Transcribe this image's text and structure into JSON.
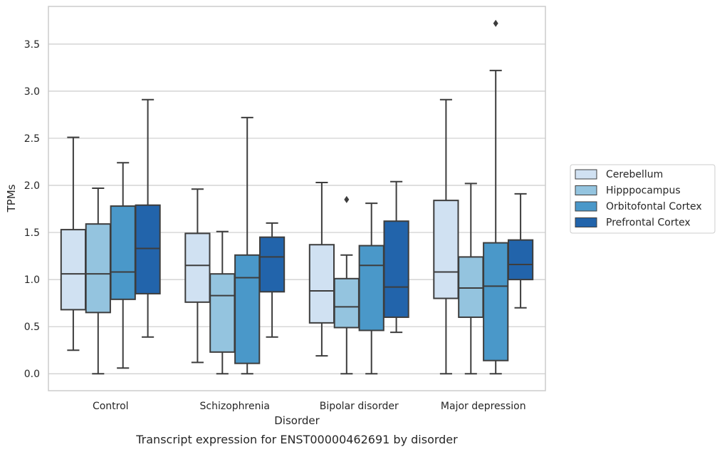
{
  "caption": "Transcript expression for ENST00000462691 by disorder",
  "chart_data": {
    "type": "box",
    "xlabel": "Disorder",
    "ylabel": "TPMs",
    "ylim": [
      -0.18,
      3.9
    ],
    "yticks": [
      "0.0",
      "0.5",
      "1.0",
      "1.5",
      "2.0",
      "2.5",
      "3.0",
      "3.5"
    ],
    "ytick_values": [
      0.0,
      0.5,
      1.0,
      1.5,
      2.0,
      2.5,
      3.0,
      3.5
    ],
    "grid": true,
    "legend_position": "right",
    "categories": [
      "Control",
      "Schizophrenia",
      "Bipolar disorder",
      "Major depression"
    ],
    "series": [
      {
        "name": "Cerebellum",
        "color": "#d0e1f2",
        "boxes": [
          {
            "whislo": 0.25,
            "q1": 0.68,
            "med": 1.06,
            "q3": 1.53,
            "whishi": 2.51,
            "fliers": []
          },
          {
            "whislo": 0.12,
            "q1": 0.76,
            "med": 1.15,
            "q3": 1.49,
            "whishi": 1.96,
            "fliers": []
          },
          {
            "whislo": 0.19,
            "q1": 0.54,
            "med": 0.88,
            "q3": 1.37,
            "whishi": 2.03,
            "fliers": []
          },
          {
            "whislo": 0.0,
            "q1": 0.8,
            "med": 1.08,
            "q3": 1.84,
            "whishi": 2.91,
            "fliers": []
          }
        ]
      },
      {
        "name": "Hipppocampus",
        "color": "#94c4df",
        "boxes": [
          {
            "whislo": 0.0,
            "q1": 0.65,
            "med": 1.06,
            "q3": 1.59,
            "whishi": 1.97,
            "fliers": []
          },
          {
            "whislo": 0.0,
            "q1": 0.23,
            "med": 0.83,
            "q3": 1.06,
            "whishi": 1.51,
            "fliers": []
          },
          {
            "whislo": 0.0,
            "q1": 0.49,
            "med": 0.71,
            "q3": 1.01,
            "whishi": 1.26,
            "fliers": [
              1.85
            ]
          },
          {
            "whislo": 0.0,
            "q1": 0.6,
            "med": 0.91,
            "q3": 1.24,
            "whishi": 2.02,
            "fliers": []
          }
        ]
      },
      {
        "name": "Orbitofontal Cortex",
        "color": "#4a98c9",
        "boxes": [
          {
            "whislo": 0.06,
            "q1": 0.79,
            "med": 1.08,
            "q3": 1.78,
            "whishi": 2.24,
            "fliers": []
          },
          {
            "whislo": 0.0,
            "q1": 0.11,
            "med": 1.02,
            "q3": 1.26,
            "whishi": 2.72,
            "fliers": []
          },
          {
            "whislo": 0.0,
            "q1": 0.46,
            "med": 1.15,
            "q3": 1.36,
            "whishi": 1.81,
            "fliers": []
          },
          {
            "whislo": 0.0,
            "q1": 0.14,
            "med": 0.93,
            "q3": 1.39,
            "whishi": 3.22,
            "fliers": [
              3.72
            ]
          }
        ]
      },
      {
        "name": "Prefrontal Cortex",
        "color": "#2264ab",
        "boxes": [
          {
            "whislo": 0.39,
            "q1": 0.85,
            "med": 1.33,
            "q3": 1.79,
            "whishi": 2.91,
            "fliers": []
          },
          {
            "whislo": 0.39,
            "q1": 0.87,
            "med": 1.24,
            "q3": 1.45,
            "whishi": 1.6,
            "fliers": []
          },
          {
            "whislo": 0.44,
            "q1": 0.6,
            "med": 0.92,
            "q3": 1.62,
            "whishi": 2.04,
            "fliers": []
          },
          {
            "whislo": 0.7,
            "q1": 1.0,
            "med": 1.16,
            "q3": 1.42,
            "whishi": 1.91,
            "fliers": []
          }
        ]
      }
    ]
  }
}
